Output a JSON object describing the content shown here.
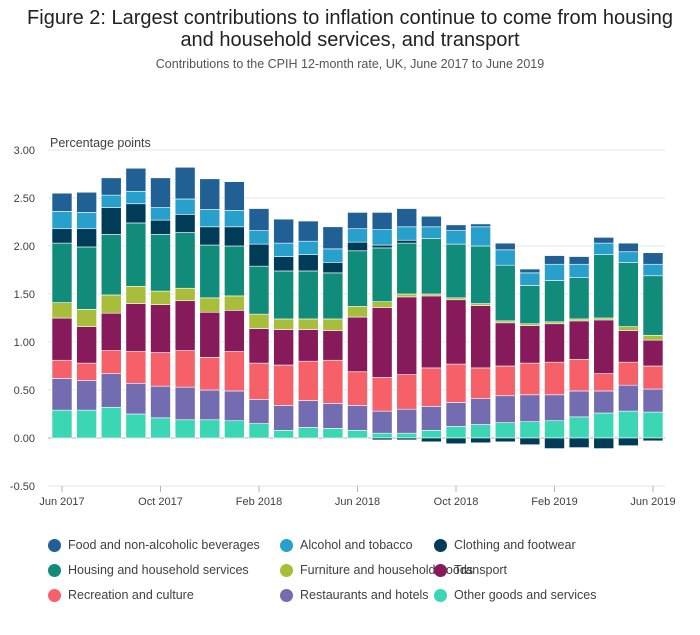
{
  "title_line1": "Figure 2: Largest contributions to inflation continue to come from housing",
  "title_line2": "and household services, and transport",
  "subtitle": "Contributions to the CPIH 12-month rate, UK, June 2017 to June 2019",
  "chart_data": {
    "type": "bar",
    "stacked": true,
    "ylabel": "Percentage points",
    "ylim": [
      -0.5,
      3.0
    ],
    "yticks": [
      "3.00",
      "2.50",
      "2.00",
      "1.50",
      "1.00",
      "0.50",
      "0.00",
      "-0.50"
    ],
    "ytick_values": [
      3.0,
      2.5,
      2.0,
      1.5,
      1.0,
      0.5,
      0.0,
      -0.5
    ],
    "xtick_labels": [
      {
        "label": "Jun 2017",
        "index": 0
      },
      {
        "label": "Oct 2017",
        "index": 4
      },
      {
        "label": "Feb 2018",
        "index": 8
      },
      {
        "label": "Jun 2018",
        "index": 12
      },
      {
        "label": "Oct 2018",
        "index": 16
      },
      {
        "label": "Feb 2019",
        "index": 20
      },
      {
        "label": "Jun 2019",
        "index": 24
      }
    ],
    "categories": [
      "Jun 2017",
      "Jul 2017",
      "Aug 2017",
      "Sep 2017",
      "Oct 2017",
      "Nov 2017",
      "Dec 2017",
      "Jan 2018",
      "Feb 2018",
      "Mar 2018",
      "Apr 2018",
      "May 2018",
      "Jun 2018",
      "Jul 2018",
      "Aug 2018",
      "Sep 2018",
      "Oct 2018",
      "Nov 2018",
      "Dec 2018",
      "Jan 2019",
      "Feb 2019",
      "Mar 2019",
      "Apr 2019",
      "May 2019",
      "Jun 2019"
    ],
    "grid": true,
    "legend_position": "bottom",
    "series": [
      {
        "name": "Other goods and services",
        "color": "#3bd6b4",
        "values": [
          0.29,
          0.29,
          0.32,
          0.25,
          0.21,
          0.19,
          0.19,
          0.18,
          0.15,
          0.08,
          0.11,
          0.1,
          0.08,
          0.05,
          0.05,
          0.08,
          0.12,
          0.14,
          0.16,
          0.17,
          0.18,
          0.22,
          0.26,
          0.28,
          0.27
        ]
      },
      {
        "name": "Restaurants and hotels",
        "color": "#746cb1",
        "values": [
          0.33,
          0.31,
          0.35,
          0.32,
          0.33,
          0.34,
          0.31,
          0.31,
          0.25,
          0.26,
          0.28,
          0.26,
          0.26,
          0.23,
          0.25,
          0.25,
          0.25,
          0.27,
          0.28,
          0.28,
          0.27,
          0.27,
          0.23,
          0.27,
          0.24
        ]
      },
      {
        "name": "Recreation and culture",
        "color": "#f66068",
        "values": [
          0.19,
          0.18,
          0.24,
          0.33,
          0.35,
          0.38,
          0.34,
          0.41,
          0.38,
          0.42,
          0.41,
          0.45,
          0.35,
          0.35,
          0.36,
          0.4,
          0.4,
          0.32,
          0.31,
          0.33,
          0.34,
          0.33,
          0.18,
          0.24,
          0.24
        ]
      },
      {
        "name": "Transport",
        "color": "#871a5b",
        "values": [
          0.44,
          0.38,
          0.39,
          0.5,
          0.5,
          0.52,
          0.47,
          0.43,
          0.36,
          0.37,
          0.33,
          0.31,
          0.57,
          0.73,
          0.81,
          0.75,
          0.67,
          0.65,
          0.45,
          0.39,
          0.4,
          0.4,
          0.56,
          0.33,
          0.27
        ]
      },
      {
        "name": "Furniture and household goods",
        "color": "#a8bd3a",
        "values": [
          0.16,
          0.18,
          0.19,
          0.18,
          0.14,
          0.13,
          0.15,
          0.15,
          0.15,
          0.11,
          0.11,
          0.12,
          0.11,
          0.06,
          0.03,
          0.02,
          0.02,
          0.02,
          0.02,
          0.02,
          0.02,
          0.02,
          0.02,
          0.04,
          0.05
        ]
      },
      {
        "name": "Housing and household services",
        "color": "#118c7b",
        "values": [
          0.62,
          0.65,
          0.63,
          0.66,
          0.59,
          0.58,
          0.55,
          0.52,
          0.5,
          0.5,
          0.5,
          0.48,
          0.58,
          0.56,
          0.53,
          0.58,
          0.56,
          0.6,
          0.58,
          0.4,
          0.43,
          0.43,
          0.66,
          0.67,
          0.62
        ]
      },
      {
        "name": "Clothing and footwear",
        "color": "#003c57",
        "values": [
          0.15,
          0.19,
          0.28,
          0.2,
          0.15,
          0.19,
          0.19,
          0.2,
          0.23,
          0.15,
          0.17,
          0.11,
          0.09,
          0.03,
          0.03,
          0.0,
          0.0,
          0.0,
          0.0,
          0.0,
          0.0,
          0.0,
          0.0,
          0.0,
          0.0
        ]
      },
      {
        "name": "Alcohol and tobacco",
        "color": "#27a0cc",
        "values": [
          0.18,
          0.17,
          0.13,
          0.13,
          0.13,
          0.16,
          0.18,
          0.17,
          0.14,
          0.14,
          0.14,
          0.14,
          0.14,
          0.16,
          0.14,
          0.12,
          0.14,
          0.2,
          0.16,
          0.13,
          0.17,
          0.14,
          0.12,
          0.11,
          0.12
        ]
      },
      {
        "name": "Food and non-alcoholic beverages",
        "color": "#206095",
        "values": [
          0.19,
          0.21,
          0.18,
          0.24,
          0.31,
          0.33,
          0.32,
          0.3,
          0.23,
          0.25,
          0.21,
          0.23,
          0.17,
          0.18,
          0.19,
          0.11,
          0.06,
          0.03,
          0.07,
          0.04,
          0.09,
          0.08,
          0.06,
          0.09,
          0.12
        ]
      },
      {
        "name": "Clothing and footwear (negative)",
        "color": "#003c57",
        "legend": false,
        "values": [
          0.0,
          0.0,
          0.0,
          0.0,
          0.0,
          0.0,
          0.0,
          0.0,
          0.0,
          0.0,
          0.0,
          0.0,
          0.0,
          -0.02,
          -0.02,
          -0.04,
          -0.06,
          -0.05,
          -0.04,
          -0.07,
          -0.11,
          -0.1,
          -0.11,
          -0.08,
          -0.03
        ]
      }
    ]
  },
  "legend": [
    {
      "label": "Food and non-alcoholic beverages",
      "color": "#206095"
    },
    {
      "label": "Alcohol and tobacco",
      "color": "#27a0cc"
    },
    {
      "label": "Clothing and footwear",
      "color": "#003c57"
    },
    {
      "label": "Housing and household services",
      "color": "#118c7b"
    },
    {
      "label": "Furniture and household goods",
      "color": "#a8bd3a"
    },
    {
      "label": "Transport",
      "color": "#871a5b"
    },
    {
      "label": "Recreation and culture",
      "color": "#f66068"
    },
    {
      "label": "Restaurants and hotels",
      "color": "#746cb1"
    },
    {
      "label": "Other goods and services",
      "color": "#3bd6b4"
    }
  ]
}
